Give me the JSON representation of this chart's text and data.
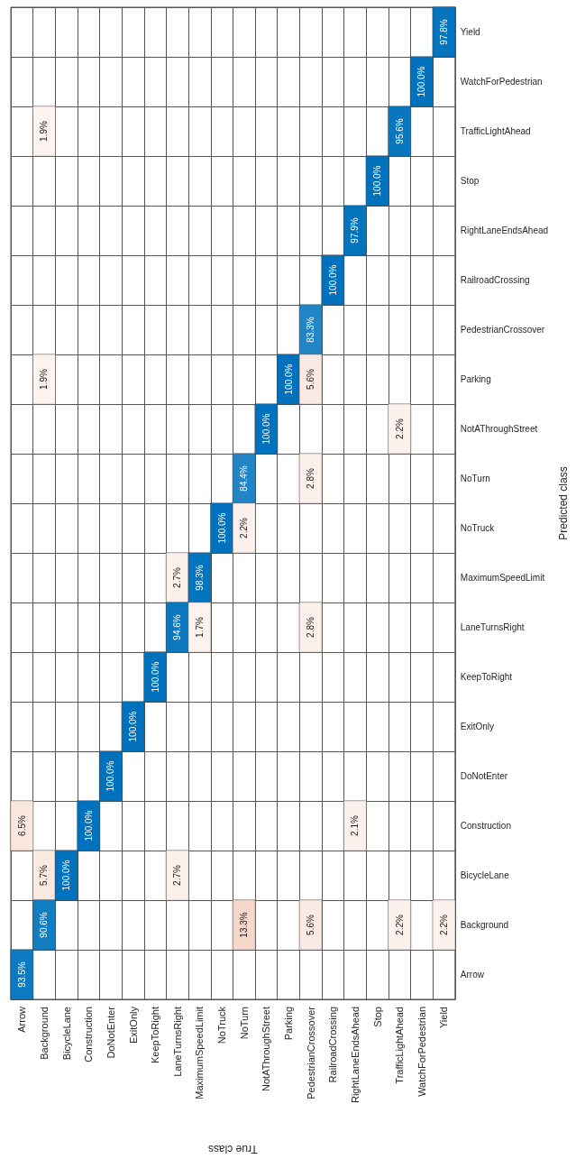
{
  "chart_data": {
    "type": "heatmap",
    "xlabel": "True class",
    "ylabel": "Predicted class",
    "categories": [
      "Arrow",
      "Background",
      "BicycleLane",
      "Construction",
      "DoNotEnter",
      "ExitOnly",
      "KeepToRight",
      "LaneTurnsRight",
      "MaximumSpeedLimit",
      "NoTruck",
      "NoTurn",
      "NotAThroughStreet",
      "Parking",
      "PedestrianCrossover",
      "RailroadCrossing",
      "RightLaneEndsAhead",
      "Stop",
      "TrafficLightAhead",
      "WatchForPedestrian",
      "Yield"
    ],
    "y_categories": [
      "Yield",
      "WatchForPedestrian",
      "TrafficLightAhead",
      "Stop",
      "RightLaneEndsAhead",
      "RailroadCrossing",
      "PedestrianCrossover",
      "Parking",
      "NotAThroughStreet",
      "NoTurn",
      "NoTruck",
      "MaximumSpeedLimit",
      "LaneTurnsRight",
      "KeepToRight",
      "ExitOnly",
      "DoNotEnter",
      "Construction",
      "BicycleLane",
      "Background",
      "Arrow"
    ],
    "colors": [
      "#0072bd",
      "#d95319"
    ],
    "grid": true,
    "cells": [
      [
        null,
        null,
        null,
        null,
        null,
        null,
        null,
        null,
        null,
        null,
        null,
        null,
        null,
        null,
        null,
        null,
        null,
        null,
        null,
        97.8
      ],
      [
        null,
        null,
        null,
        null,
        null,
        null,
        null,
        null,
        null,
        null,
        null,
        null,
        null,
        null,
        null,
        null,
        null,
        null,
        100,
        null
      ],
      [
        null,
        1.9,
        null,
        null,
        null,
        null,
        null,
        null,
        null,
        null,
        null,
        null,
        null,
        null,
        null,
        null,
        null,
        95.6,
        null,
        null
      ],
      [
        null,
        null,
        null,
        null,
        null,
        null,
        null,
        null,
        null,
        null,
        null,
        null,
        null,
        null,
        null,
        null,
        100,
        null,
        null,
        null
      ],
      [
        null,
        null,
        null,
        null,
        null,
        null,
        null,
        null,
        null,
        null,
        null,
        null,
        null,
        null,
        null,
        97.9,
        null,
        null,
        null,
        null
      ],
      [
        null,
        null,
        null,
        null,
        null,
        null,
        null,
        null,
        null,
        null,
        null,
        null,
        null,
        null,
        100,
        null,
        null,
        null,
        null,
        null
      ],
      [
        null,
        null,
        null,
        null,
        null,
        null,
        null,
        null,
        null,
        null,
        null,
        null,
        null,
        83.3,
        null,
        null,
        null,
        null,
        null,
        null
      ],
      [
        null,
        1.9,
        null,
        null,
        null,
        null,
        null,
        null,
        null,
        null,
        null,
        null,
        100,
        5.6,
        null,
        null,
        null,
        null,
        null,
        null
      ],
      [
        null,
        null,
        null,
        null,
        null,
        null,
        null,
        null,
        null,
        null,
        null,
        100,
        null,
        null,
        null,
        null,
        null,
        2.2,
        null,
        null
      ],
      [
        null,
        null,
        null,
        null,
        null,
        null,
        null,
        null,
        null,
        null,
        84.4,
        null,
        null,
        2.8,
        null,
        null,
        null,
        null,
        null,
        null
      ],
      [
        null,
        null,
        null,
        null,
        null,
        null,
        null,
        null,
        null,
        100,
        2.2,
        null,
        null,
        null,
        null,
        null,
        null,
        null,
        null,
        null
      ],
      [
        null,
        null,
        null,
        null,
        null,
        null,
        null,
        2.7,
        98.3,
        null,
        null,
        null,
        null,
        null,
        null,
        null,
        null,
        null,
        null,
        null
      ],
      [
        null,
        null,
        null,
        null,
        null,
        null,
        null,
        94.6,
        1.7,
        null,
        null,
        null,
        null,
        2.8,
        null,
        null,
        null,
        null,
        null,
        null
      ],
      [
        null,
        null,
        null,
        null,
        null,
        null,
        100,
        null,
        null,
        null,
        null,
        null,
        null,
        null,
        null,
        null,
        null,
        null,
        null,
        null
      ],
      [
        null,
        null,
        null,
        null,
        null,
        100,
        null,
        null,
        null,
        null,
        null,
        null,
        null,
        null,
        null,
        null,
        null,
        null,
        null,
        null
      ],
      [
        null,
        null,
        null,
        null,
        100,
        null,
        null,
        null,
        null,
        null,
        null,
        null,
        null,
        null,
        null,
        null,
        null,
        null,
        null,
        null
      ],
      [
        6.5,
        null,
        null,
        100,
        null,
        null,
        null,
        null,
        null,
        null,
        null,
        null,
        null,
        null,
        null,
        2.1,
        null,
        null,
        null,
        null
      ],
      [
        null,
        5.7,
        100,
        null,
        null,
        null,
        null,
        2.7,
        null,
        null,
        null,
        null,
        null,
        null,
        null,
        null,
        null,
        null,
        null,
        null
      ],
      [
        null,
        90.6,
        null,
        null,
        null,
        null,
        null,
        null,
        null,
        null,
        13.3,
        null,
        null,
        5.6,
        null,
        null,
        null,
        2.2,
        null,
        2.2
      ],
      [
        93.5,
        null,
        null,
        null,
        null,
        null,
        null,
        null,
        null,
        null,
        null,
        null,
        null,
        null,
        null,
        null,
        null,
        null,
        null,
        null
      ]
    ],
    "cell_labels": [
      [
        null,
        null,
        null,
        null,
        null,
        null,
        null,
        null,
        null,
        null,
        null,
        null,
        null,
        null,
        null,
        null,
        null,
        null,
        null,
        "97.8%"
      ],
      [
        null,
        null,
        null,
        null,
        null,
        null,
        null,
        null,
        null,
        null,
        null,
        null,
        null,
        null,
        null,
        null,
        null,
        null,
        "100.0%",
        null
      ],
      [
        null,
        "1.9%",
        null,
        null,
        null,
        null,
        null,
        null,
        null,
        null,
        null,
        null,
        null,
        null,
        null,
        null,
        null,
        "95.6%",
        null,
        null
      ],
      [
        null,
        null,
        null,
        null,
        null,
        null,
        null,
        null,
        null,
        null,
        null,
        null,
        null,
        null,
        null,
        null,
        "100.0%",
        null,
        null,
        null
      ],
      [
        null,
        null,
        null,
        null,
        null,
        null,
        null,
        null,
        null,
        null,
        null,
        null,
        null,
        null,
        null,
        "97.9%",
        null,
        null,
        null,
        null
      ],
      [
        null,
        null,
        null,
        null,
        null,
        null,
        null,
        null,
        null,
        null,
        null,
        null,
        null,
        null,
        "100.0%",
        null,
        null,
        null,
        null,
        null
      ],
      [
        null,
        null,
        null,
        null,
        null,
        null,
        null,
        null,
        null,
        null,
        null,
        null,
        null,
        "83.3%",
        null,
        null,
        null,
        null,
        null,
        null
      ],
      [
        null,
        "1.9%",
        null,
        null,
        null,
        null,
        null,
        null,
        null,
        null,
        null,
        null,
        "100.0%",
        "5.6%",
        null,
        null,
        null,
        null,
        null,
        null
      ],
      [
        null,
        null,
        null,
        null,
        null,
        null,
        null,
        null,
        null,
        null,
        null,
        "100.0%",
        null,
        null,
        null,
        null,
        null,
        "2.2%",
        null,
        null
      ],
      [
        null,
        null,
        null,
        null,
        null,
        null,
        null,
        null,
        null,
        null,
        "84.4%",
        null,
        null,
        "2.8%",
        null,
        null,
        null,
        null,
        null,
        null
      ],
      [
        null,
        null,
        null,
        null,
        null,
        null,
        null,
        null,
        null,
        "100.0%",
        "2.2%",
        null,
        null,
        null,
        null,
        null,
        null,
        null,
        null,
        null
      ],
      [
        null,
        null,
        null,
        null,
        null,
        null,
        null,
        "2.7%",
        "98.3%",
        null,
        null,
        null,
        null,
        null,
        null,
        null,
        null,
        null,
        null,
        null
      ],
      [
        null,
        null,
        null,
        null,
        null,
        null,
        null,
        "94.6%",
        "1.7%",
        null,
        null,
        null,
        null,
        "2.8%",
        null,
        null,
        null,
        null,
        null,
        null
      ],
      [
        null,
        null,
        null,
        null,
        null,
        null,
        "100.0%",
        null,
        null,
        null,
        null,
        null,
        null,
        null,
        null,
        null,
        null,
        null,
        null,
        null
      ],
      [
        null,
        null,
        null,
        null,
        null,
        "100.0%",
        null,
        null,
        null,
        null,
        null,
        null,
        null,
        null,
        null,
        null,
        null,
        null,
        null,
        null
      ],
      [
        null,
        null,
        null,
        null,
        "100.0%",
        null,
        null,
        null,
        null,
        null,
        null,
        null,
        null,
        null,
        null,
        null,
        null,
        null,
        null,
        null
      ],
      [
        "6.5%",
        null,
        null,
        "100.0%",
        null,
        null,
        null,
        null,
        null,
        null,
        null,
        null,
        null,
        null,
        null,
        "2.1%",
        null,
        null,
        null,
        null
      ],
      [
        null,
        "5.7%",
        "100.0%",
        null,
        null,
        null,
        null,
        "2.7%",
        null,
        null,
        null,
        null,
        null,
        null,
        null,
        null,
        null,
        null,
        null,
        null
      ],
      [
        null,
        "90.6%",
        null,
        null,
        null,
        null,
        null,
        null,
        null,
        null,
        "13.3%",
        null,
        null,
        "5.6%",
        null,
        null,
        null,
        "2.2%",
        null,
        "2.2%"
      ],
      [
        "93.5%",
        null,
        null,
        null,
        null,
        null,
        null,
        null,
        null,
        null,
        null,
        null,
        null,
        null,
        null,
        null,
        null,
        null,
        null,
        null
      ]
    ]
  }
}
